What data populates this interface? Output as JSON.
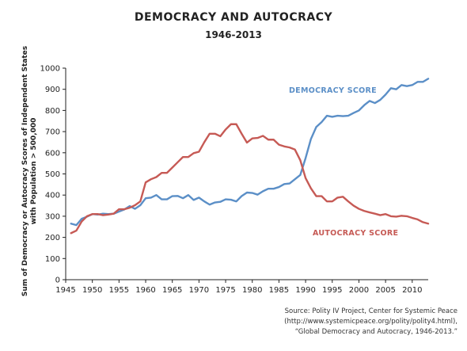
{
  "colors": {
    "democracy": "#5b8fc7",
    "autocracy": "#c65a55"
  },
  "source": {
    "line1": "Source: Polity IV Project, Center for Systemic Peace",
    "line2": "(http://www.systemicpeace.org/polity/polity4.html),",
    "line3": "“Global Democracy and Autocracy, 1946-2013.”"
  },
  "chart_data": {
    "type": "line",
    "title": "DEMOCRACY AND AUTOCRACY",
    "subtitle": "1946-2013",
    "xlabel": "",
    "ylabel_line1": "Sum of Democracy or Autocracy Scores of Independent States",
    "ylabel_line2": "with Population > 500,000",
    "xlim": [
      1945,
      2013
    ],
    "ylim": [
      0,
      1000
    ],
    "x_ticks": [
      "1945",
      "1950",
      "1955",
      "1960",
      "1965",
      "1970",
      "1975",
      "1980",
      "1985",
      "1990",
      "1995",
      "2000",
      "2005",
      "2010"
    ],
    "y_ticks": [
      "0",
      "100",
      "200",
      "300",
      "400",
      "500",
      "600",
      "700",
      "800",
      "900",
      "1000"
    ],
    "grid": false,
    "legend": "inline labels",
    "x": [
      1946,
      1947,
      1948,
      1949,
      1950,
      1951,
      1952,
      1953,
      1954,
      1955,
      1956,
      1957,
      1958,
      1959,
      1960,
      1961,
      1962,
      1963,
      1964,
      1965,
      1966,
      1967,
      1968,
      1969,
      1970,
      1971,
      1972,
      1973,
      1974,
      1975,
      1976,
      1977,
      1978,
      1979,
      1980,
      1981,
      1982,
      1983,
      1984,
      1985,
      1986,
      1987,
      1988,
      1989,
      1990,
      1991,
      1992,
      1993,
      1994,
      1995,
      1996,
      1997,
      1998,
      1999,
      2000,
      2001,
      2002,
      2003,
      2004,
      2005,
      2006,
      2007,
      2008,
      2009,
      2010,
      2011,
      2012,
      2013
    ],
    "series": [
      {
        "name": "DEMOCRACY SCORE",
        "values": [
          265,
          258,
          288,
          298,
          310,
          308,
          312,
          310,
          312,
          322,
          332,
          348,
          335,
          352,
          385,
          388,
          400,
          380,
          380,
          395,
          396,
          385,
          400,
          377,
          388,
          370,
          355,
          365,
          368,
          380,
          378,
          370,
          395,
          412,
          410,
          402,
          418,
          430,
          430,
          438,
          452,
          455,
          475,
          495,
          575,
          665,
          722,
          745,
          775,
          770,
          775,
          773,
          775,
          788,
          800,
          825,
          845,
          835,
          850,
          875,
          905,
          900,
          920,
          915,
          920,
          935,
          935,
          950
        ]
      },
      {
        "name": "AUTOCRACY SCORE",
        "values": [
          220,
          232,
          275,
          300,
          310,
          310,
          305,
          308,
          312,
          333,
          333,
          340,
          352,
          370,
          460,
          475,
          485,
          505,
          505,
          530,
          555,
          580,
          580,
          598,
          605,
          650,
          690,
          690,
          678,
          710,
          735,
          735,
          690,
          648,
          668,
          670,
          680,
          662,
          662,
          638,
          630,
          625,
          615,
          565,
          480,
          432,
          395,
          395,
          370,
          370,
          388,
          392,
          370,
          350,
          335,
          325,
          318,
          312,
          305,
          310,
          300,
          298,
          302,
          300,
          292,
          285,
          272,
          265
        ]
      }
    ]
  }
}
